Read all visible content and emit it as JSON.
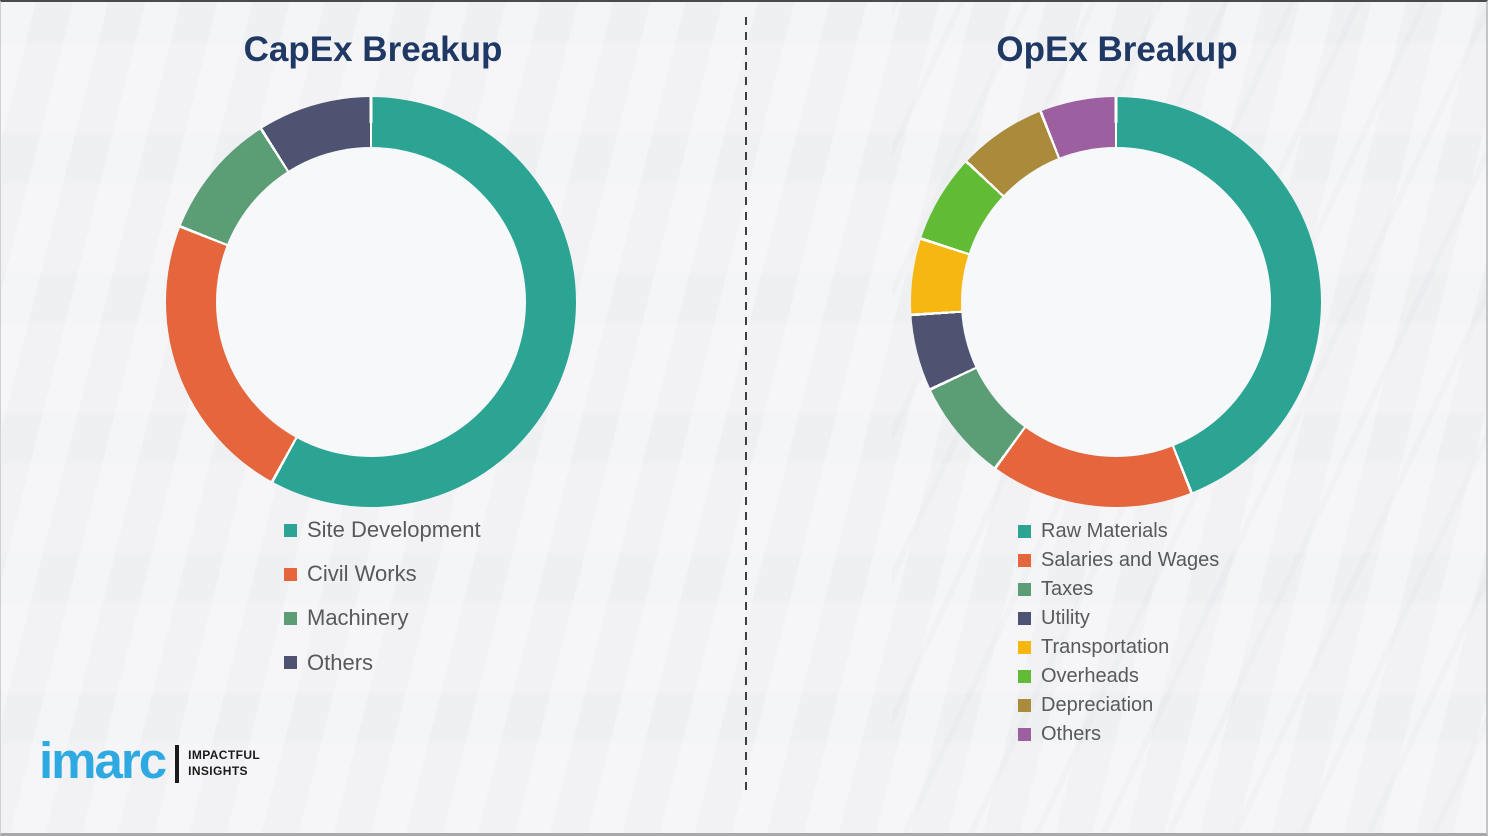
{
  "style": {
    "background": "#f1f2f4",
    "title_color": "#1f3864",
    "legend_text_color": "#58595b",
    "divider_color": "#3f3f3f",
    "segment_gap_color": "#ffffff"
  },
  "chart_data": [
    {
      "type": "pie",
      "variant": "donut",
      "title": "CapEx Breakup",
      "categories": [
        "Site Development",
        "Civil Works",
        "Machinery",
        "Others"
      ],
      "values": [
        58,
        23,
        10,
        9
      ],
      "values_estimated": true,
      "colors": [
        "#2ba493",
        "#e5663c",
        "#5b9e76",
        "#4d5370"
      ],
      "start_angle_deg": 0,
      "direction": "clockwise",
      "legend_position": "below-left"
    },
    {
      "type": "pie",
      "variant": "donut",
      "title": "OpEx Breakup",
      "categories": [
        "Raw Materials",
        "Salaries and Wages",
        "Taxes",
        "Utility",
        "Transportation",
        "Overheads",
        "Depreciation",
        "Others"
      ],
      "values": [
        44,
        16,
        8,
        6,
        6,
        7,
        7,
        6
      ],
      "values_estimated": true,
      "colors": [
        "#2ba493",
        "#e5663c",
        "#5b9e76",
        "#4d5370",
        "#f7b712",
        "#62bb34",
        "#a98b3b",
        "#9c5fa0"
      ],
      "start_angle_deg": 0,
      "direction": "clockwise",
      "legend_position": "below-left"
    }
  ],
  "logo": {
    "brand": "imarc",
    "brand_color": "#2fa9e1",
    "tagline_line1": "IMPACTFUL",
    "tagline_line2": "INSIGHTS"
  }
}
